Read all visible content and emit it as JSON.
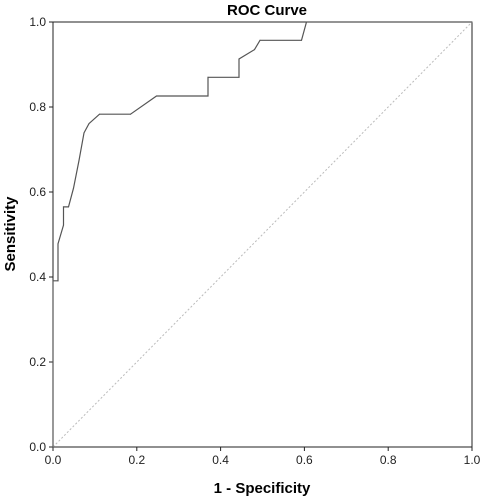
{
  "chart_data": {
    "type": "line",
    "title": "ROC Curve",
    "xlabel": "1 - Specificity",
    "ylabel": "Sensitivity",
    "xlim": [
      0.0,
      1.0
    ],
    "ylim": [
      0.0,
      1.0
    ],
    "xticks": [
      0.0,
      0.2,
      0.4,
      0.6,
      0.8,
      1.0
    ],
    "yticks": [
      0.0,
      0.2,
      0.4,
      0.6,
      0.8,
      1.0
    ],
    "xtick_labels": [
      "0.0",
      "0.2",
      "0.4",
      "0.6",
      "0.8",
      "1.0"
    ],
    "ytick_labels": [
      "0.0",
      "0.2",
      "0.4",
      "0.6",
      "0.8",
      "1.0"
    ],
    "grid": false,
    "legend": "none",
    "series": [
      {
        "role": "roc",
        "color": "#555555",
        "x": [
          0.0,
          0.0,
          0.012,
          0.012,
          0.025,
          0.025,
          0.037,
          0.037,
          0.049,
          0.062,
          0.074,
          0.086,
          0.111,
          0.185,
          0.247,
          0.37,
          0.37,
          0.444,
          0.444,
          0.481,
          0.494,
          0.593,
          0.605,
          0.617,
          1.0
        ],
        "y": [
          0.0,
          0.391,
          0.391,
          0.478,
          0.522,
          0.565,
          0.565,
          0.565,
          0.609,
          0.674,
          0.739,
          0.761,
          0.783,
          0.783,
          0.826,
          0.826,
          0.87,
          0.87,
          0.913,
          0.935,
          0.957,
          0.957,
          1.0,
          1.0,
          1.0
        ]
      },
      {
        "role": "reference",
        "color": "#bbbbbb",
        "x": [
          0.0,
          1.0
        ],
        "y": [
          0.0,
          1.0
        ]
      }
    ]
  }
}
